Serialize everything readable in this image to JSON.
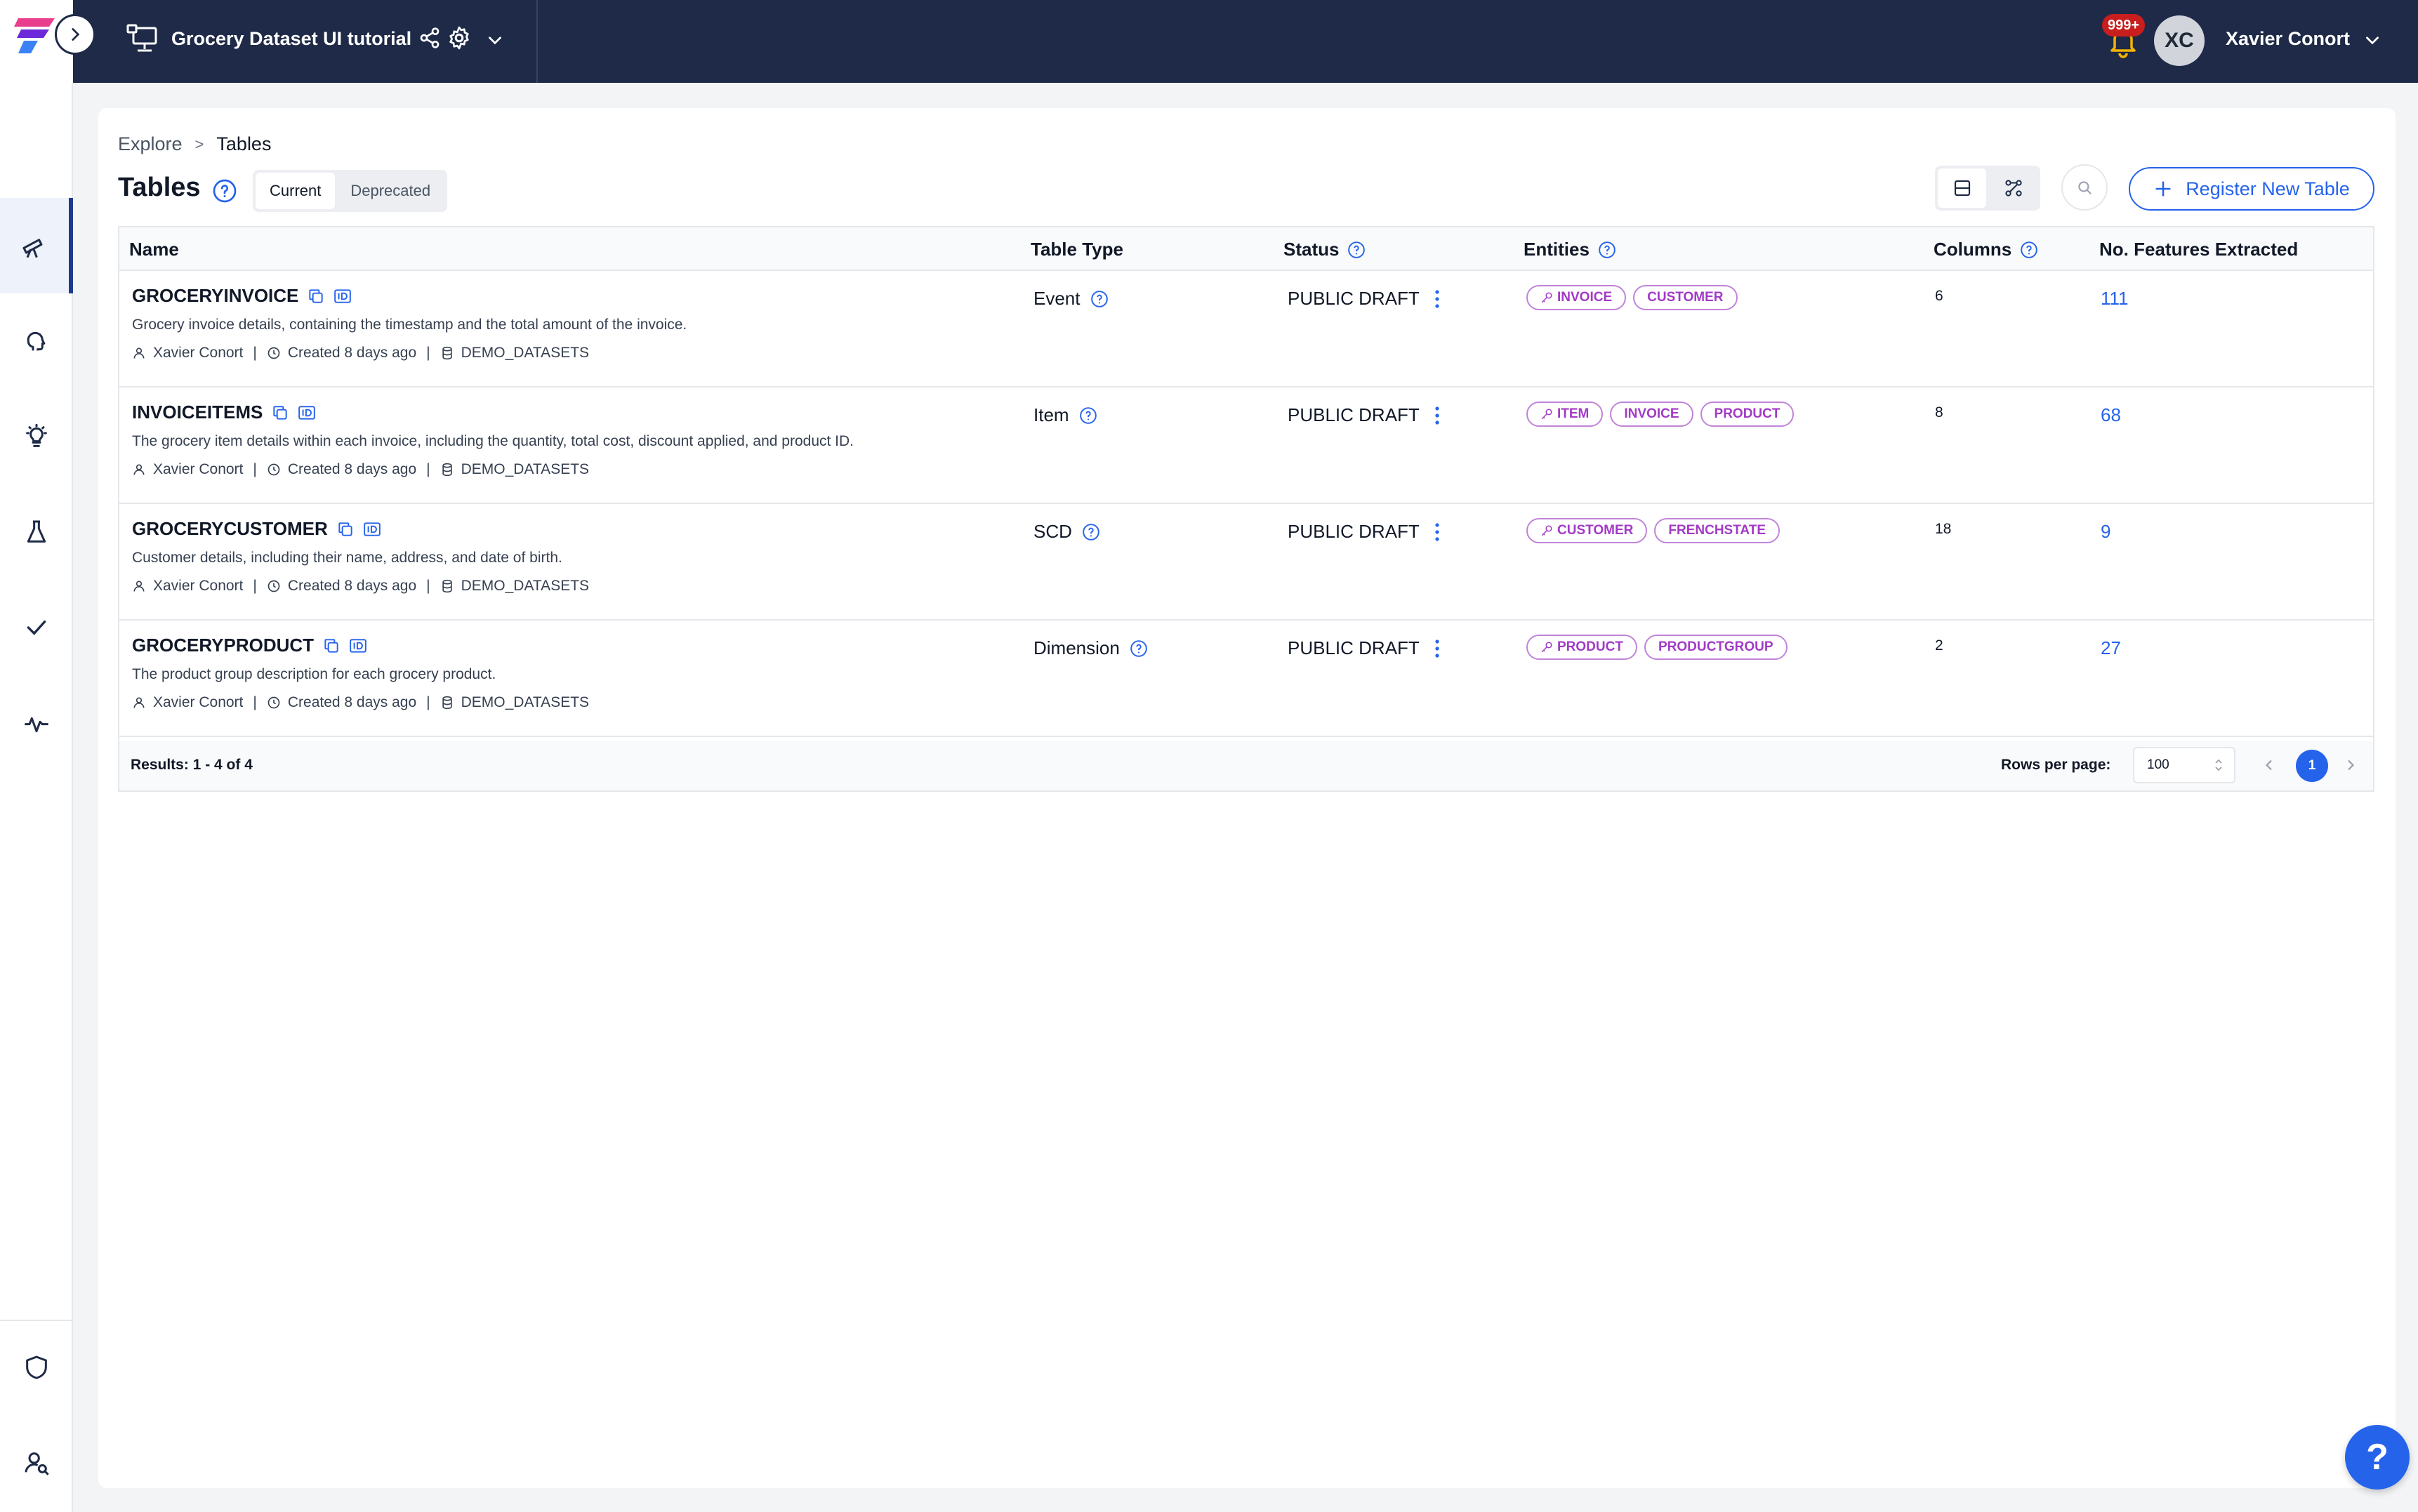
{
  "header": {
    "project_title": "Grocery Dataset UI tutorial",
    "notification_badge": "999+",
    "user_initials": "XC",
    "user_name": "Xavier Conort"
  },
  "sidebar": {
    "items": [
      {
        "icon": "telescope-icon",
        "active": true
      },
      {
        "icon": "brain-icon",
        "active": false
      },
      {
        "icon": "lightbulb-icon",
        "active": false
      },
      {
        "icon": "flask-icon",
        "active": false
      },
      {
        "icon": "check-icon",
        "active": false
      },
      {
        "icon": "activity-icon",
        "active": false
      },
      {
        "icon": "shield-icon",
        "active": false
      },
      {
        "icon": "user-search-icon",
        "active": false
      }
    ]
  },
  "breadcrumb": {
    "parent": "Explore",
    "separator": ">",
    "current": "Tables"
  },
  "page": {
    "title": "Tables",
    "tabs": [
      "Current",
      "Deprecated"
    ],
    "active_tab": "Current",
    "register_label": "Register New Table"
  },
  "table": {
    "headers": {
      "name": "Name",
      "type": "Table Type",
      "status": "Status",
      "entities": "Entities",
      "columns": "Columns",
      "features": "No. Features Extracted"
    },
    "rows": [
      {
        "name": "GROCERYINVOICE",
        "description": "Grocery invoice details, containing the timestamp and the total amount of the invoice.",
        "owner": "Xavier Conort",
        "created": "Created 8 days ago",
        "source": "DEMO_DATASETS",
        "type": "Event",
        "status": "PUBLIC DRAFT",
        "entities": [
          {
            "label": "INVOICE",
            "key": true
          },
          {
            "label": "CUSTOMER",
            "key": false
          }
        ],
        "columns": "6",
        "features": "111"
      },
      {
        "name": "INVOICEITEMS",
        "description": "The grocery item details within each invoice, including the quantity, total cost, discount applied, and product ID.",
        "owner": "Xavier Conort",
        "created": "Created 8 days ago",
        "source": "DEMO_DATASETS",
        "type": "Item",
        "status": "PUBLIC DRAFT",
        "entities": [
          {
            "label": "ITEM",
            "key": true
          },
          {
            "label": "INVOICE",
            "key": false
          },
          {
            "label": "PRODUCT",
            "key": false
          }
        ],
        "columns": "8",
        "features": "68"
      },
      {
        "name": "GROCERYCUSTOMER",
        "description": "Customer details, including their name, address, and date of birth.",
        "owner": "Xavier Conort",
        "created": "Created 8 days ago",
        "source": "DEMO_DATASETS",
        "type": "SCD",
        "status": "PUBLIC DRAFT",
        "entities": [
          {
            "label": "CUSTOMER",
            "key": true
          },
          {
            "label": "FRENCHSTATE",
            "key": false
          }
        ],
        "columns": "18",
        "features": "9"
      },
      {
        "name": "GROCERYPRODUCT",
        "description": "The product group description for each grocery product.",
        "owner": "Xavier Conort",
        "created": "Created 8 days ago",
        "source": "DEMO_DATASETS",
        "type": "Dimension",
        "status": "PUBLIC DRAFT",
        "entities": [
          {
            "label": "PRODUCT",
            "key": true
          },
          {
            "label": "PRODUCTGROUP",
            "key": false
          }
        ],
        "columns": "2",
        "features": "27"
      }
    ]
  },
  "footer": {
    "results": "Results: 1 - 4 of 4",
    "rows_per_page_label": "Rows per page:",
    "rows_per_page": "100",
    "current_page": "1"
  },
  "help_fab": "?",
  "colors": {
    "topbar": "#1e2a47",
    "accent": "#2563eb",
    "entity_chip": "#a23ac6",
    "badge": "#c81e1e"
  }
}
